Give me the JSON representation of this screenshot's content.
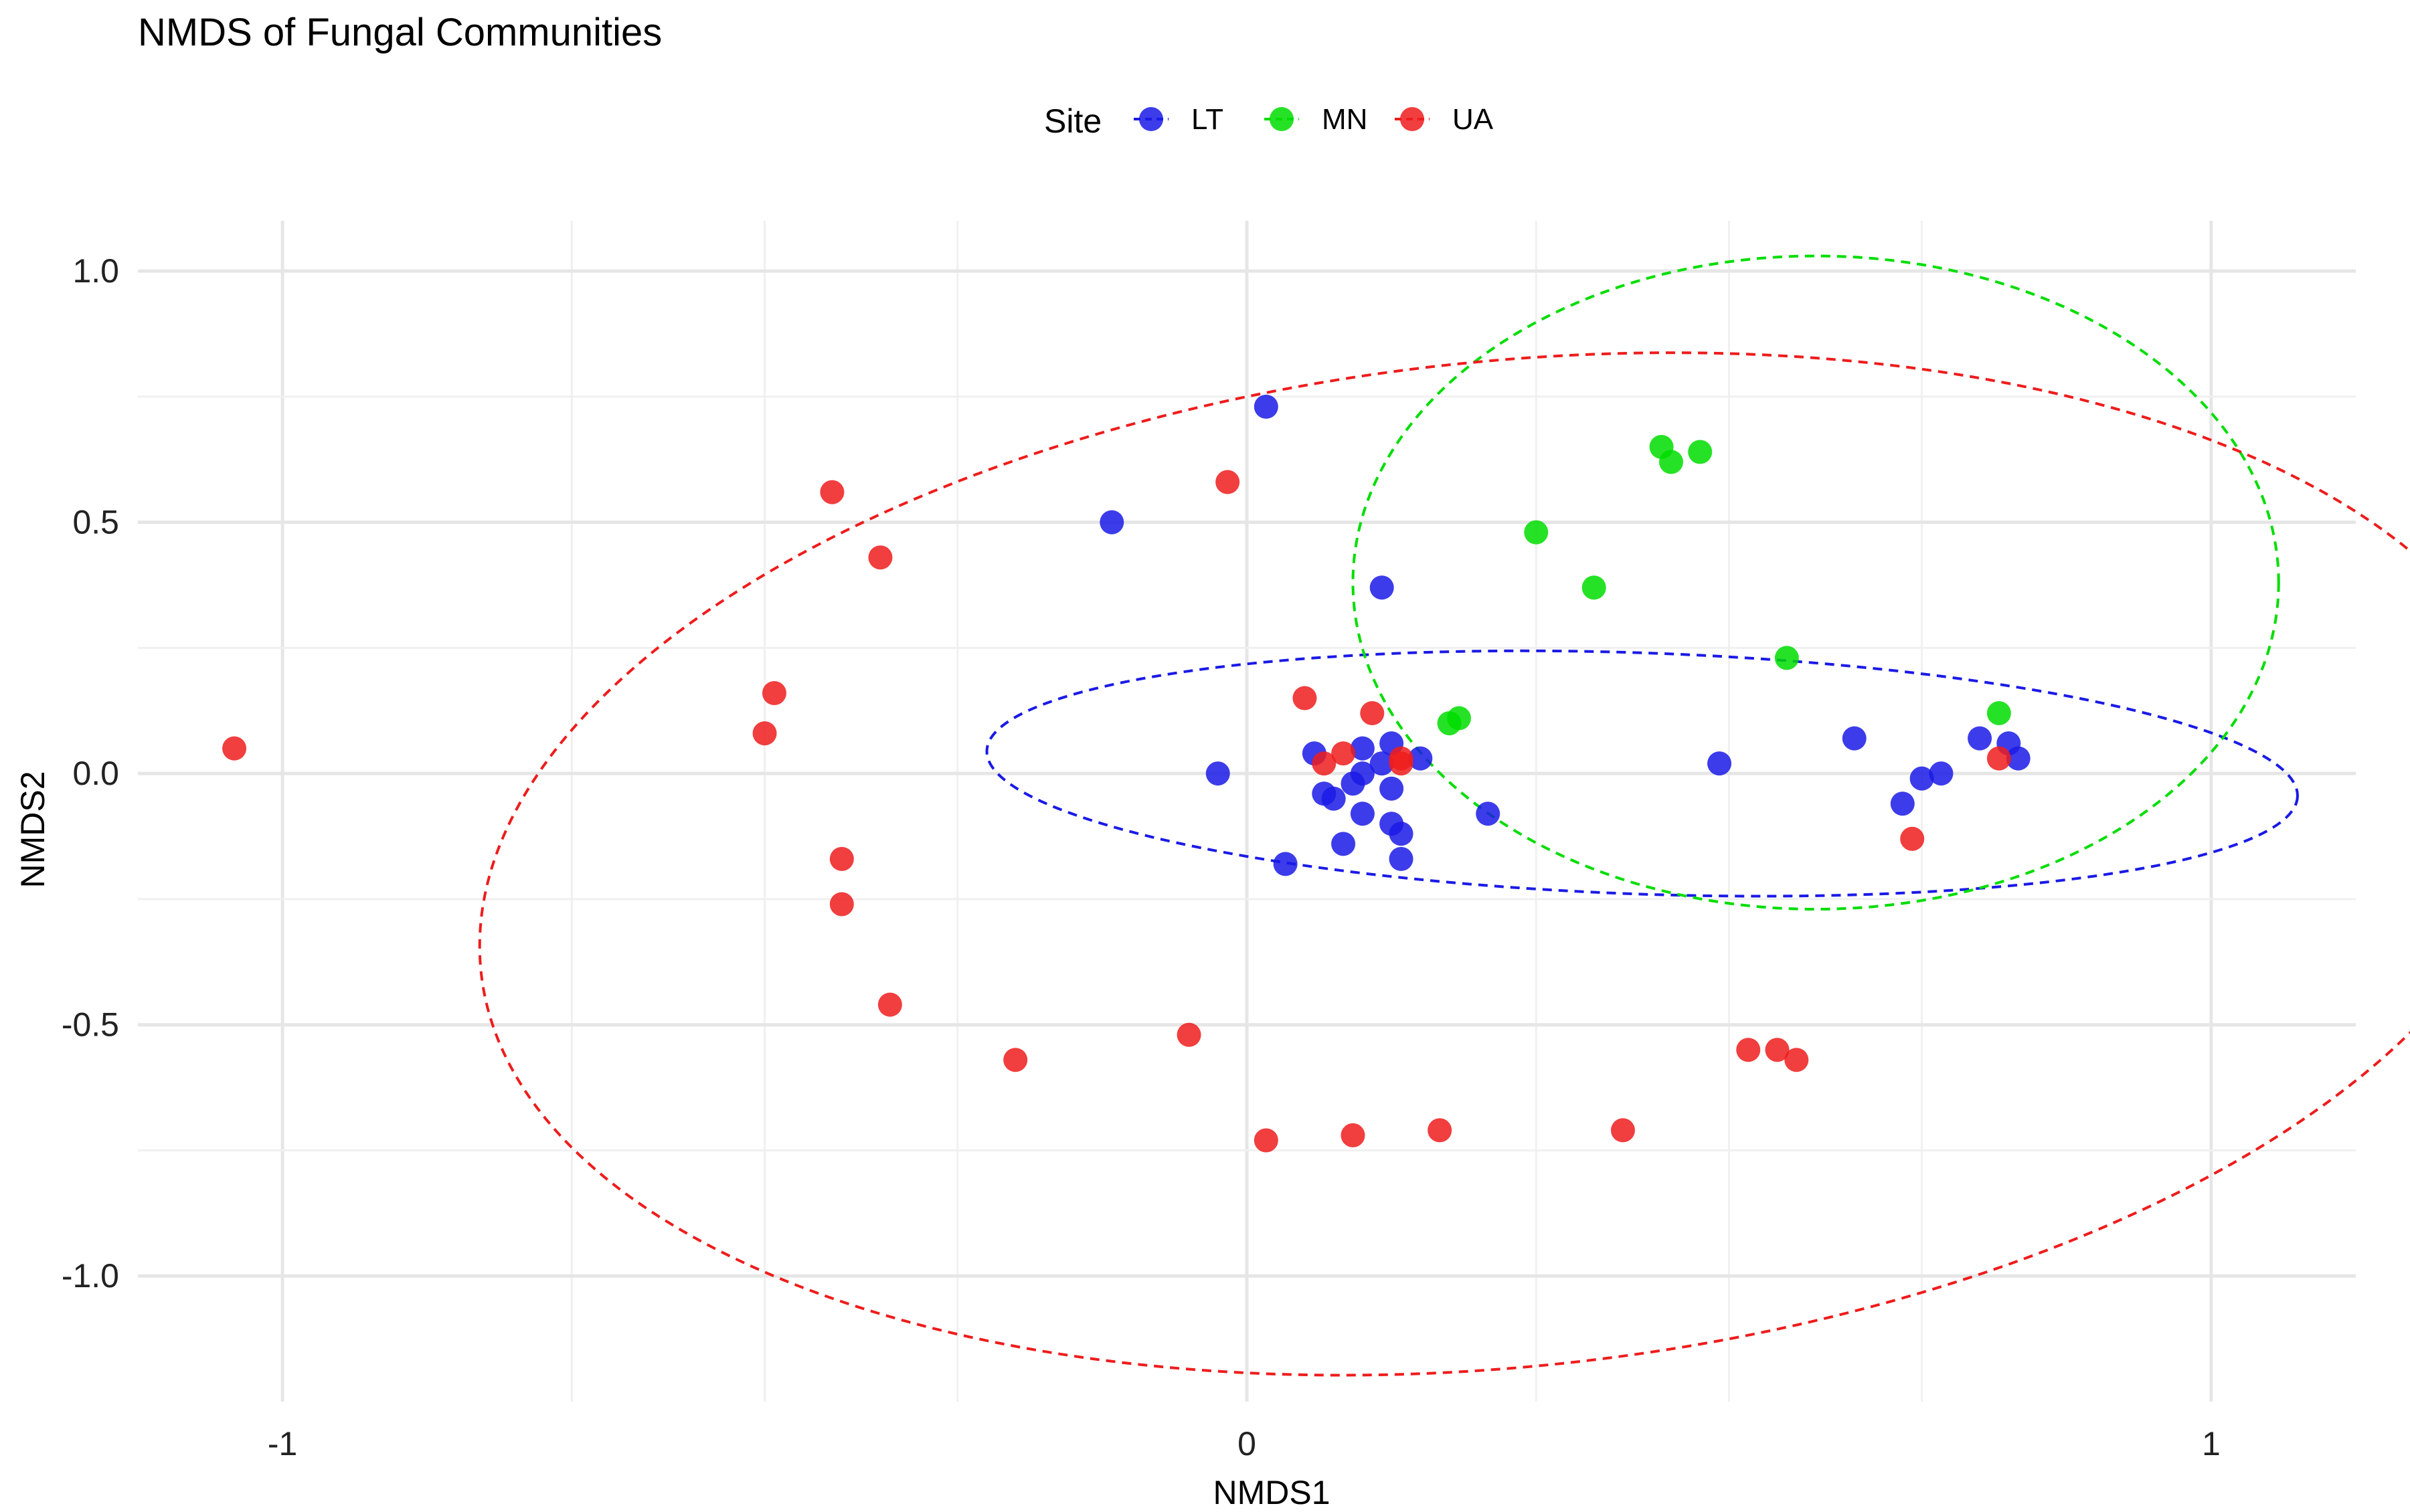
{
  "chart_data": {
    "type": "scatter",
    "title": "NMDS of Fungal Communities",
    "xlabel": "NMDS1",
    "ylabel": "NMDS2",
    "xlim": [
      -1.15,
      1.15
    ],
    "ylim": [
      -1.25,
      1.1
    ],
    "x_ticks": [
      -1,
      0,
      1
    ],
    "x_tick_labels": [
      "-1",
      "0",
      "1"
    ],
    "y_ticks": [
      1.0,
      0.5,
      0.0,
      -0.5,
      -1.0
    ],
    "y_tick_labels": [
      "1.0",
      "0.5",
      "0.0",
      "-0.5",
      "-1.0"
    ],
    "grid": true,
    "legend": {
      "title": "Site",
      "placement": "top-center"
    },
    "series": [
      {
        "name": "LT",
        "color": "#1a1ae6",
        "ellipse": {
          "center": [
            0.41,
            0.0
          ],
          "semi_axes": [
            0.68,
            0.24
          ],
          "angle_deg": 2
        },
        "points": [
          [
            0.02,
            0.73
          ],
          [
            -0.14,
            0.5
          ],
          [
            0.14,
            0.37
          ],
          [
            0.12,
            0.05
          ],
          [
            0.15,
            0.06
          ],
          [
            0.14,
            0.02
          ],
          [
            0.18,
            0.03
          ],
          [
            0.07,
            0.04
          ],
          [
            0.12,
            0.0
          ],
          [
            0.11,
            -0.02
          ],
          [
            0.15,
            -0.03
          ],
          [
            0.08,
            -0.04
          ],
          [
            0.09,
            -0.05
          ],
          [
            0.12,
            -0.08
          ],
          [
            0.15,
            -0.1
          ],
          [
            0.16,
            -0.12
          ],
          [
            0.1,
            -0.14
          ],
          [
            0.16,
            -0.17
          ],
          [
            0.04,
            -0.18
          ],
          [
            -0.03,
            0.0
          ],
          [
            0.25,
            -0.08
          ],
          [
            0.49,
            0.02
          ],
          [
            0.63,
            0.07
          ],
          [
            0.76,
            0.07
          ],
          [
            0.79,
            0.06
          ],
          [
            0.8,
            0.03
          ],
          [
            0.72,
            0.0
          ],
          [
            0.7,
            -0.01
          ],
          [
            0.68,
            -0.06
          ]
        ]
      },
      {
        "name": "MN",
        "color": "#00dd00",
        "ellipse": {
          "center": [
            0.59,
            0.38
          ],
          "semi_axes": [
            0.48,
            0.65
          ],
          "angle_deg": 0
        },
        "points": [
          [
            0.43,
            0.65
          ],
          [
            0.47,
            0.64
          ],
          [
            0.44,
            0.62
          ],
          [
            0.3,
            0.48
          ],
          [
            0.36,
            0.37
          ],
          [
            0.56,
            0.23
          ],
          [
            0.21,
            0.1
          ],
          [
            0.22,
            0.11
          ],
          [
            0.78,
            0.12
          ]
        ]
      },
      {
        "name": "UA",
        "color": "#ee1c1c",
        "ellipse": {
          "center": [
            0.27,
            -0.18
          ],
          "semi_axes": [
            1.07,
            1.0
          ],
          "angle_deg": -6
        },
        "points": [
          [
            -1.05,
            0.05
          ],
          [
            -0.43,
            0.56
          ],
          [
            -0.38,
            0.43
          ],
          [
            -0.49,
            0.16
          ],
          [
            -0.5,
            0.08
          ],
          [
            -0.42,
            -0.17
          ],
          [
            -0.42,
            -0.26
          ],
          [
            -0.37,
            -0.46
          ],
          [
            -0.24,
            -0.57
          ],
          [
            -0.06,
            -0.52
          ],
          [
            -0.02,
            0.58
          ],
          [
            0.06,
            0.15
          ],
          [
            0.13,
            0.12
          ],
          [
            0.1,
            0.04
          ],
          [
            0.08,
            0.02
          ],
          [
            0.16,
            0.02
          ],
          [
            0.16,
            0.03
          ],
          [
            0.69,
            -0.13
          ],
          [
            0.78,
            0.03
          ],
          [
            0.02,
            -0.73
          ],
          [
            0.11,
            -0.72
          ],
          [
            0.2,
            -0.71
          ],
          [
            0.39,
            -0.71
          ],
          [
            0.52,
            -0.55
          ],
          [
            0.55,
            -0.55
          ],
          [
            0.57,
            -0.57
          ]
        ]
      }
    ]
  }
}
